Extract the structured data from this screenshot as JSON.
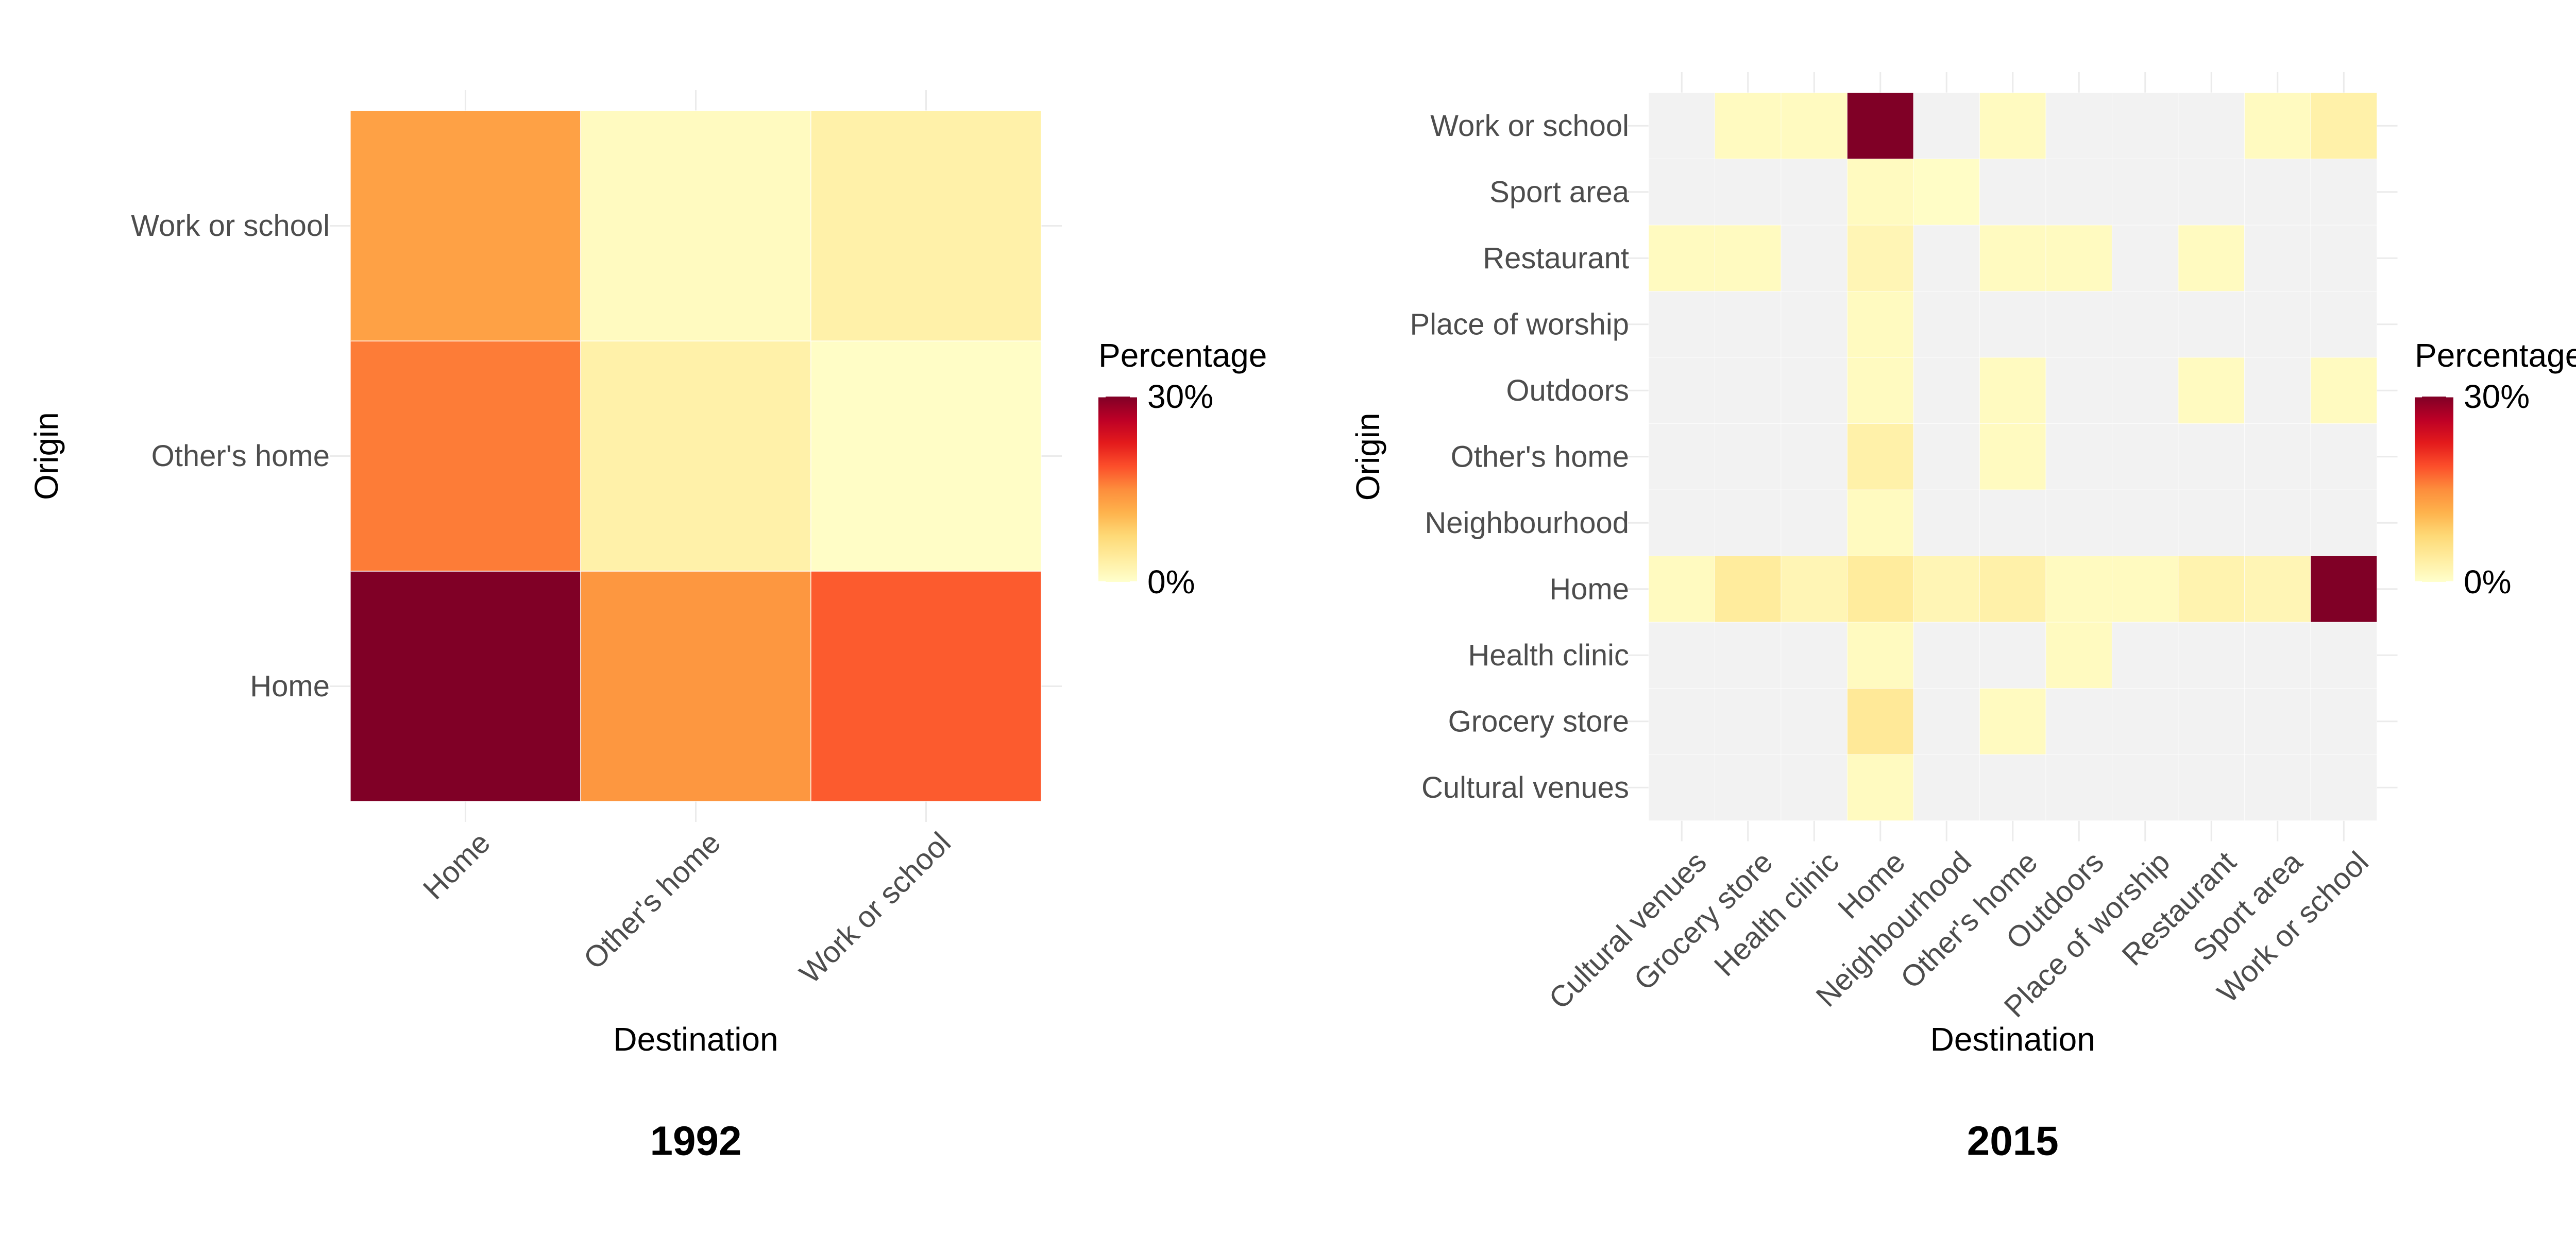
{
  "chart_data": [
    {
      "type": "heatmap",
      "title": "1992",
      "xlabel": "Destination",
      "ylabel": "Origin",
      "x_categories": [
        "Home",
        "Other's home",
        "Work or school"
      ],
      "y_categories": [
        "Home",
        "Other's home",
        "Work or school"
      ],
      "value_unit": "%",
      "scale_range": [
        0,
        30
      ],
      "grid": true,
      "cells": [
        {
          "origin": "Work or school",
          "destination": "Home",
          "value": 13
        },
        {
          "origin": "Work or school",
          "destination": "Other's home",
          "value": 1
        },
        {
          "origin": "Work or school",
          "destination": "Work or school",
          "value": 3
        },
        {
          "origin": "Other's home",
          "destination": "Home",
          "value": 16
        },
        {
          "origin": "Other's home",
          "destination": "Other's home",
          "value": 3
        },
        {
          "origin": "Other's home",
          "destination": "Work or school",
          "value": 0.5
        },
        {
          "origin": "Home",
          "destination": "Home",
          "value": 30
        },
        {
          "origin": "Home",
          "destination": "Other's home",
          "value": 14
        },
        {
          "origin": "Home",
          "destination": "Work or school",
          "value": 18
        }
      ],
      "legend": {
        "title": "Percentage",
        "max_label": "30%",
        "min_label": "0%",
        "placement": "right"
      }
    },
    {
      "type": "heatmap",
      "title": "2015",
      "xlabel": "Destination",
      "ylabel": "Origin",
      "x_categories": [
        "Cultural venues",
        "Grocery store",
        "Health clinic",
        "Home",
        "Neighbourhood",
        "Other's home",
        "Outdoors",
        "Place of worship",
        "Restaurant",
        "Sport area",
        "Work or school"
      ],
      "y_categories": [
        "Cultural venues",
        "Grocery store",
        "Health clinic",
        "Home",
        "Neighbourhood",
        "Other's home",
        "Outdoors",
        "Place of worship",
        "Restaurant",
        "Sport area",
        "Work or school"
      ],
      "value_unit": "%",
      "scale_range": [
        0,
        30
      ],
      "missing_color": "#f2f2f2",
      "grid": true,
      "cells": [
        {
          "origin": "Work or school",
          "destination": "Grocery store",
          "value": 1
        },
        {
          "origin": "Work or school",
          "destination": "Health clinic",
          "value": 1
        },
        {
          "origin": "Work or school",
          "destination": "Home",
          "value": 30
        },
        {
          "origin": "Work or school",
          "destination": "Other's home",
          "value": 1
        },
        {
          "origin": "Work or school",
          "destination": "Sport area",
          "value": 1
        },
        {
          "origin": "Work or school",
          "destination": "Work or school",
          "value": 3
        },
        {
          "origin": "Sport area",
          "destination": "Home",
          "value": 1
        },
        {
          "origin": "Sport area",
          "destination": "Neighbourhood",
          "value": 0.5
        },
        {
          "origin": "Restaurant",
          "destination": "Cultural venues",
          "value": 1
        },
        {
          "origin": "Restaurant",
          "destination": "Grocery store",
          "value": 1
        },
        {
          "origin": "Restaurant",
          "destination": "Home",
          "value": 2
        },
        {
          "origin": "Restaurant",
          "destination": "Other's home",
          "value": 1
        },
        {
          "origin": "Restaurant",
          "destination": "Outdoors",
          "value": 1
        },
        {
          "origin": "Restaurant",
          "destination": "Restaurant",
          "value": 1
        },
        {
          "origin": "Place of worship",
          "destination": "Home",
          "value": 1
        },
        {
          "origin": "Outdoors",
          "destination": "Home",
          "value": 1
        },
        {
          "origin": "Outdoors",
          "destination": "Other's home",
          "value": 1
        },
        {
          "origin": "Outdoors",
          "destination": "Restaurant",
          "value": 1
        },
        {
          "origin": "Outdoors",
          "destination": "Work or school",
          "value": 1
        },
        {
          "origin": "Other's home",
          "destination": "Home",
          "value": 3
        },
        {
          "origin": "Other's home",
          "destination": "Other's home",
          "value": 1
        },
        {
          "origin": "Neighbourhood",
          "destination": "Home",
          "value": 1
        },
        {
          "origin": "Home",
          "destination": "Cultural venues",
          "value": 1
        },
        {
          "origin": "Home",
          "destination": "Grocery store",
          "value": 4
        },
        {
          "origin": "Home",
          "destination": "Health clinic",
          "value": 2
        },
        {
          "origin": "Home",
          "destination": "Home",
          "value": 4
        },
        {
          "origin": "Home",
          "destination": "Neighbourhood",
          "value": 2
        },
        {
          "origin": "Home",
          "destination": "Other's home",
          "value": 3
        },
        {
          "origin": "Home",
          "destination": "Outdoors",
          "value": 1
        },
        {
          "origin": "Home",
          "destination": "Place of worship",
          "value": 1
        },
        {
          "origin": "Home",
          "destination": "Restaurant",
          "value": 2.5
        },
        {
          "origin": "Home",
          "destination": "Sport area",
          "value": 2
        },
        {
          "origin": "Home",
          "destination": "Work or school",
          "value": 30
        },
        {
          "origin": "Health clinic",
          "destination": "Home",
          "value": 1
        },
        {
          "origin": "Health clinic",
          "destination": "Outdoors",
          "value": 1
        },
        {
          "origin": "Grocery store",
          "destination": "Home",
          "value": 4.5
        },
        {
          "origin": "Grocery store",
          "destination": "Other's home",
          "value": 1
        },
        {
          "origin": "Cultural venues",
          "destination": "Home",
          "value": 1
        }
      ],
      "legend": {
        "title": "Percentage",
        "max_label": "30%",
        "min_label": "0%",
        "placement": "right"
      }
    }
  ]
}
